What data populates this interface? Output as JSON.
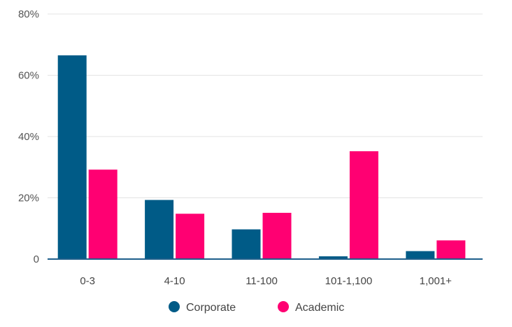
{
  "chart_data": {
    "type": "bar",
    "categories": [
      "0-3",
      "4-10",
      "11-100",
      "101-1,100",
      "1,001+"
    ],
    "series": [
      {
        "name": "Corporate",
        "color": "#005b87",
        "values": [
          66.5,
          19.3,
          9.7,
          0.9,
          2.6
        ]
      },
      {
        "name": "Academic",
        "color": "#ff0072",
        "values": [
          29.2,
          14.8,
          15.1,
          35.2,
          6.1
        ]
      }
    ],
    "y_ticks": [
      "0",
      "20%",
      "40%",
      "60%",
      "80%"
    ],
    "ylim": [
      0,
      80
    ],
    "grid": true,
    "legend_position": "bottom-center"
  }
}
